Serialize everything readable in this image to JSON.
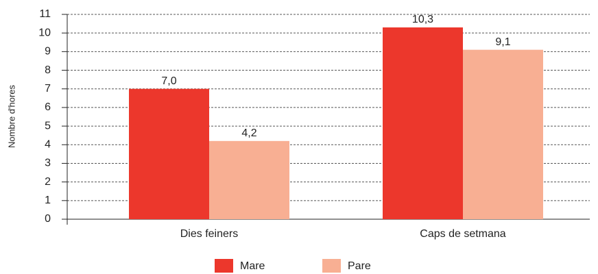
{
  "chart_data": {
    "type": "bar",
    "y_label": "Nombre d'hores",
    "categories": [
      "Dies feiners",
      "Caps de setmana"
    ],
    "series": [
      {
        "name": "Mare",
        "color": "#ec372c",
        "values": [
          7.0,
          10.3
        ],
        "value_labels": [
          "7,0",
          "10,3"
        ]
      },
      {
        "name": "Pare",
        "color": "#f8af93",
        "values": [
          4.2,
          9.1
        ],
        "value_labels": [
          "4,2",
          "9,1"
        ]
      }
    ],
    "ylim": [
      0,
      11
    ],
    "yticks": [
      0,
      1,
      2,
      3,
      4,
      5,
      6,
      7,
      8,
      9,
      10,
      11
    ],
    "grid": true
  }
}
